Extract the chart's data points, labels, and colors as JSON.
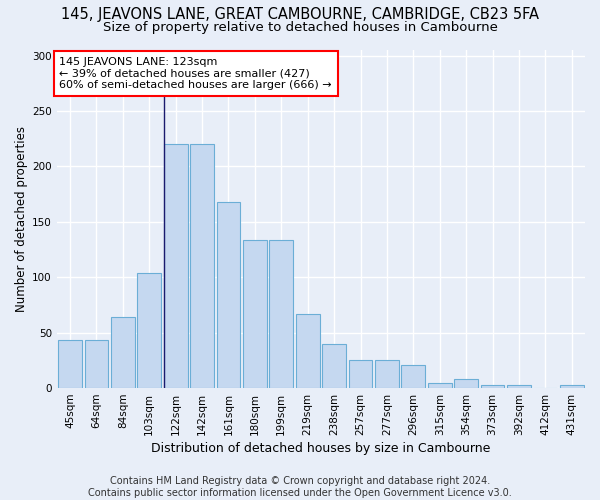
{
  "title": "145, JEAVONS LANE, GREAT CAMBOURNE, CAMBRIDGE, CB23 5FA",
  "subtitle": "Size of property relative to detached houses in Cambourne",
  "xlabel": "Distribution of detached houses by size in Cambourne",
  "ylabel": "Number of detached properties",
  "categories": [
    "45sqm",
    "64sqm",
    "84sqm",
    "103sqm",
    "122sqm",
    "142sqm",
    "161sqm",
    "180sqm",
    "199sqm",
    "219sqm",
    "238sqm",
    "257sqm",
    "277sqm",
    "296sqm",
    "315sqm",
    "354sqm",
    "373sqm",
    "392sqm",
    "412sqm",
    "431sqm"
  ],
  "values": [
    43,
    43,
    64,
    104,
    220,
    220,
    168,
    134,
    134,
    67,
    40,
    25,
    25,
    21,
    5,
    8,
    3,
    3,
    0,
    3
  ],
  "bar_color": "#c5d8f0",
  "bar_edge_color": "#6baed6",
  "vline_index": 4,
  "vline_color": "#1a1a6e",
  "ylim": [
    0,
    305
  ],
  "yticks": [
    0,
    50,
    100,
    150,
    200,
    250,
    300
  ],
  "annotation_text": "145 JEAVONS LANE: 123sqm\n← 39% of detached houses are smaller (427)\n60% of semi-detached houses are larger (666) →",
  "annotation_box_facecolor": "white",
  "annotation_box_edgecolor": "red",
  "footer": "Contains HM Land Registry data © Crown copyright and database right 2024.\nContains public sector information licensed under the Open Government Licence v3.0.",
  "background_color": "#e8eef8",
  "grid_color": "white",
  "title_fontsize": 10.5,
  "subtitle_fontsize": 9.5,
  "tick_fontsize": 7.5,
  "ylabel_fontsize": 8.5,
  "xlabel_fontsize": 9,
  "annotation_fontsize": 8,
  "footer_fontsize": 7
}
